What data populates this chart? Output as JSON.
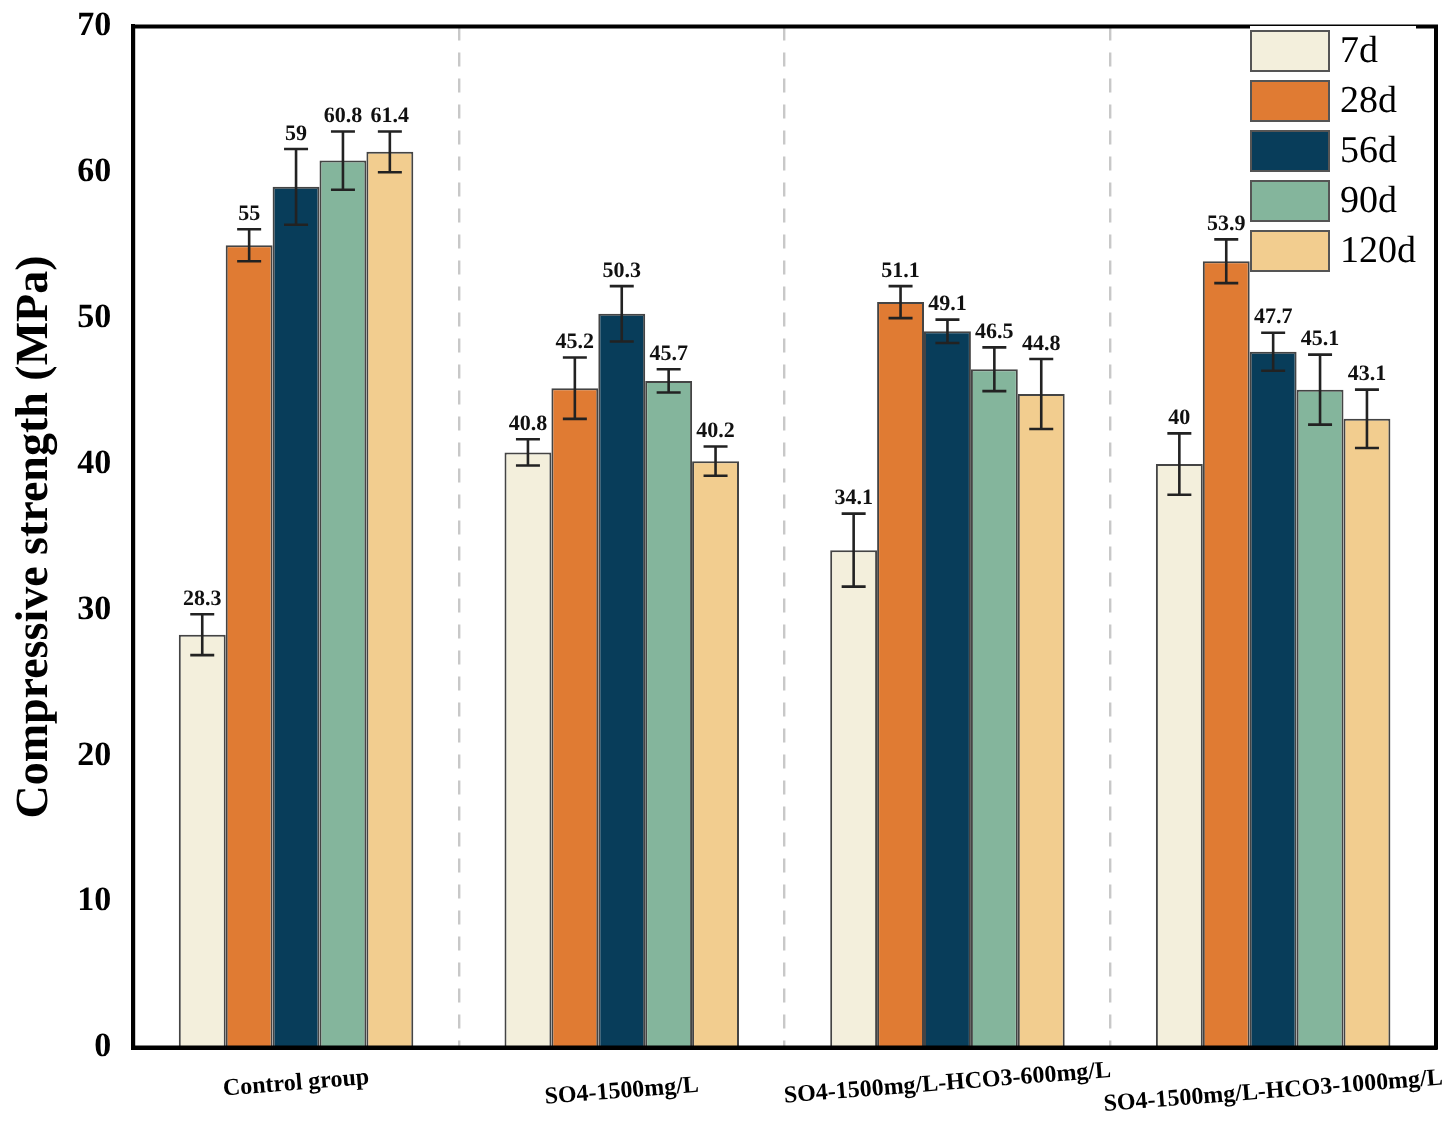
{
  "chart_data": {
    "type": "bar",
    "ylabel": "Compressive strength (MPa)",
    "categories": [
      "Control group",
      "SO4-1500mg/L",
      "SO4-1500mg/L-HCO3-600mg/L",
      "SO4-1500mg/L-HCO3-1000mg/L"
    ],
    "series": [
      {
        "name": "7d",
        "color": "#f3efdc",
        "values": [
          28.3,
          40.8,
          34.1,
          40
        ],
        "errors": [
          1.4,
          0.9,
          2.5,
          2.1
        ]
      },
      {
        "name": "28d",
        "color": "#e07b33",
        "values": [
          55,
          45.2,
          51.1,
          53.9
        ],
        "errors": [
          1.1,
          2.1,
          1.1,
          1.5
        ]
      },
      {
        "name": "56d",
        "color": "#083d5a",
        "values": [
          59,
          50.3,
          49.1,
          47.7
        ],
        "errors": [
          2.6,
          1.9,
          0.8,
          1.3
        ]
      },
      {
        "name": "90d",
        "color": "#84b59c",
        "values": [
          60.8,
          45.7,
          46.5,
          45.1
        ],
        "errors": [
          2.0,
          0.8,
          1.5,
          2.4
        ]
      },
      {
        "name": "120d",
        "color": "#f2cd8f",
        "values": [
          61.4,
          40.2,
          44.8,
          43.1
        ],
        "errors": [
          1.4,
          1.0,
          2.4,
          2.0
        ]
      }
    ],
    "ylim": [
      0,
      70
    ],
    "yticks": [
      0,
      10,
      20,
      30,
      40,
      50,
      60,
      70
    ],
    "grid": "x",
    "legend": "top right",
    "data_labels": true
  }
}
